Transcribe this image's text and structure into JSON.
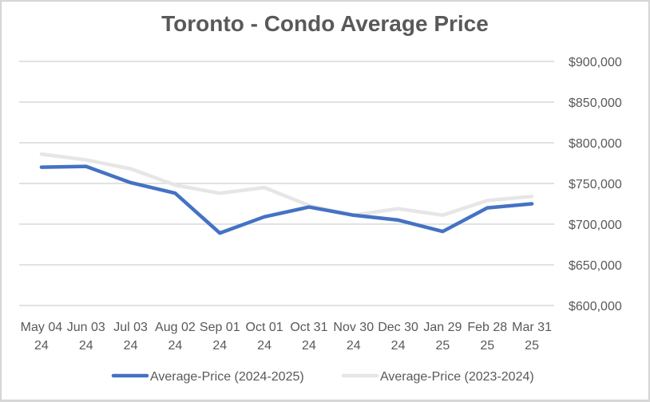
{
  "chart_data": {
    "type": "line",
    "title": "Toronto - Condo Average Price",
    "xlabel": "",
    "ylabel": "",
    "categories": [
      [
        "May 04",
        "24"
      ],
      [
        "Jun 03",
        "24"
      ],
      [
        "Jul 03",
        "24"
      ],
      [
        "Aug 02",
        "24"
      ],
      [
        "Sep 01",
        "24"
      ],
      [
        "Oct 01",
        "24"
      ],
      [
        "Oct 31",
        "24"
      ],
      [
        "Nov 30",
        "24"
      ],
      [
        "Dec 30",
        "24"
      ],
      [
        "Jan 29",
        "25"
      ],
      [
        "Feb 28",
        "25"
      ],
      [
        "Mar 31",
        "25"
      ]
    ],
    "ylim": [
      600000,
      900000
    ],
    "yticks": [
      600000,
      650000,
      700000,
      750000,
      800000,
      850000,
      900000
    ],
    "ytick_labels": [
      "$600,000",
      "$650,000",
      "$700,000",
      "$750,000",
      "$800,000",
      "$850,000",
      "$900,000"
    ],
    "y_axis_side": "right",
    "grid": true,
    "legend_position": "bottom",
    "series": [
      {
        "name": "Average-Price (2024-2025)",
        "color": "#4472c4",
        "values": [
          770000,
          771000,
          751000,
          738000,
          689000,
          709000,
          721000,
          711000,
          705000,
          691000,
          720000,
          725000
        ]
      },
      {
        "name": "Average-Price (2023-2024)",
        "color": "#e7e6e6",
        "values": [
          786000,
          779000,
          768000,
          748000,
          738000,
          745000,
          723000,
          711000,
          719000,
          711000,
          729000,
          734000
        ]
      }
    ]
  }
}
